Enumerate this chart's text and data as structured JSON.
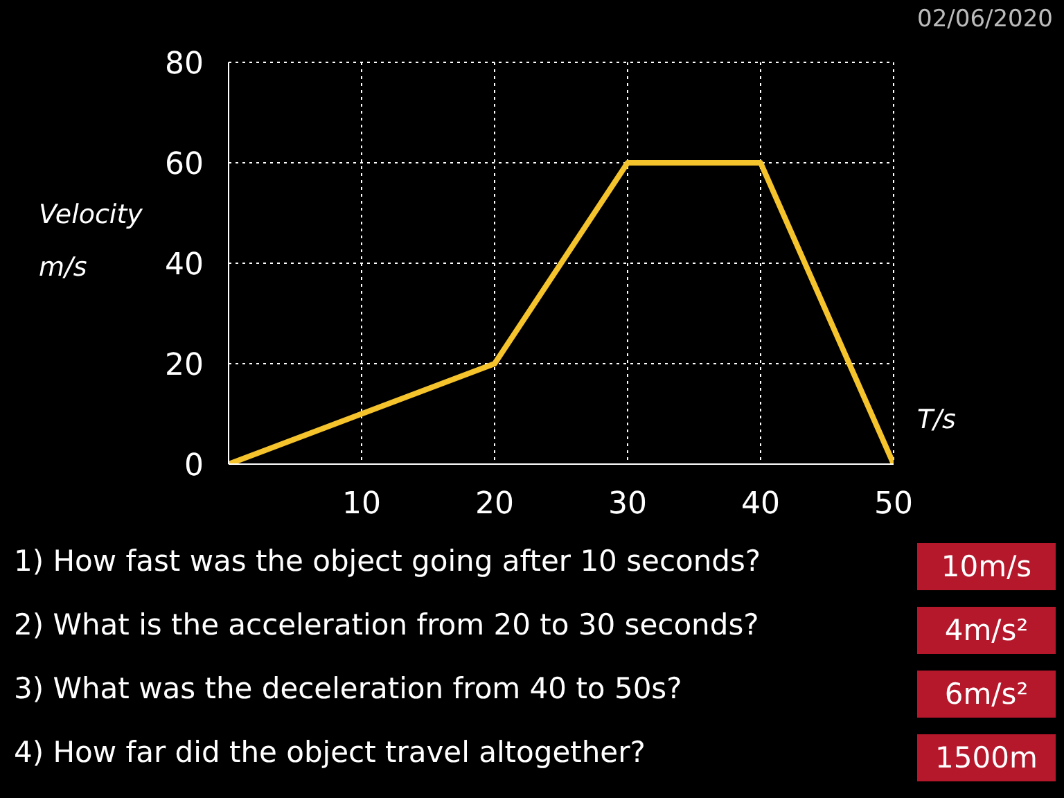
{
  "chart_data": {
    "type": "line",
    "xlabel": "T/s",
    "ylabel": "Velocity m/s",
    "x": [
      0,
      20,
      30,
      40,
      50
    ],
    "series": [
      {
        "color": "#f5c32c",
        "values": [
          0,
          20,
          60,
          60,
          0
        ]
      }
    ],
    "xlim": [
      0,
      50
    ],
    "xticks": [
      10,
      20,
      30,
      40,
      50
    ],
    "ylim": [
      0,
      80
    ],
    "yticks": [
      0,
      20,
      40,
      60,
      80
    ],
    "grid": true,
    "annotations": [
      "02/06/2020",
      "1)  How fast was the object going after 10 seconds?",
      "10m/s",
      "2)  What is the acceleration from 20 to 30 seconds?",
      "4m/s²",
      "3)  What was the deceleration from 40 to 50s?",
      "6m/s²",
      "4)  How far did the object travel altogether?",
      "1500m"
    ]
  }
}
